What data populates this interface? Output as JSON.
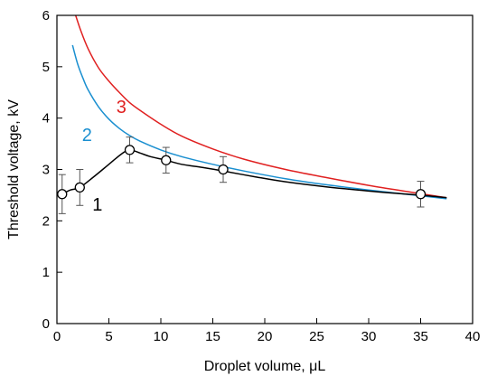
{
  "chart_data": {
    "type": "line",
    "title": "",
    "xlabel": "Droplet volume, μL",
    "ylabel": "Threshold voltage, kV",
    "xlim": [
      0,
      40
    ],
    "ylim": [
      0,
      6
    ],
    "xticks": [
      0,
      5,
      10,
      15,
      20,
      25,
      30,
      35,
      40
    ],
    "yticks": [
      0,
      1,
      2,
      3,
      4,
      5,
      6
    ],
    "grid": false,
    "series": [
      {
        "name": "1",
        "color": "#000000",
        "markers": "open-circle",
        "x": [
          0.5,
          2.2,
          7.0,
          10.5,
          16.0,
          35.0
        ],
        "y": [
          2.52,
          2.65,
          3.38,
          3.18,
          3.0,
          2.52
        ],
        "error": [
          0.38,
          0.35,
          0.25,
          0.25,
          0.25,
          0.25
        ],
        "curve_x": [
          0.5,
          1.3,
          2.2,
          3.5,
          5.0,
          6.2,
          7.0,
          8.0,
          9.0,
          10.5,
          12.0,
          14.0,
          16.0,
          19.0,
          22.0,
          26.0,
          30.0,
          33.0,
          35.0,
          37.5
        ],
        "curve_y": [
          2.52,
          2.6,
          2.65,
          2.85,
          3.1,
          3.3,
          3.38,
          3.32,
          3.25,
          3.18,
          3.1,
          3.04,
          2.97,
          2.86,
          2.76,
          2.66,
          2.58,
          2.53,
          2.5,
          2.45
        ]
      },
      {
        "name": "2",
        "color": "#1a8fd0",
        "x": [
          1.5,
          2,
          2.5,
          3,
          4,
          5,
          6,
          7,
          8,
          10,
          12,
          15,
          18,
          22,
          26,
          30,
          34,
          37.5
        ],
        "y": [
          5.42,
          5.05,
          4.78,
          4.55,
          4.22,
          3.98,
          3.8,
          3.66,
          3.55,
          3.38,
          3.25,
          3.1,
          2.97,
          2.82,
          2.7,
          2.6,
          2.51,
          2.43
        ]
      },
      {
        "name": "3",
        "color": "#e02020",
        "x": [
          1.8,
          2.3,
          3,
          4,
          5,
          6,
          7,
          8,
          10,
          12,
          15,
          18,
          22,
          26,
          30,
          34,
          37.5
        ],
        "y": [
          6.0,
          5.7,
          5.35,
          4.98,
          4.72,
          4.5,
          4.3,
          4.15,
          3.88,
          3.65,
          3.4,
          3.2,
          3.0,
          2.84,
          2.69,
          2.56,
          2.45
        ]
      }
    ]
  }
}
